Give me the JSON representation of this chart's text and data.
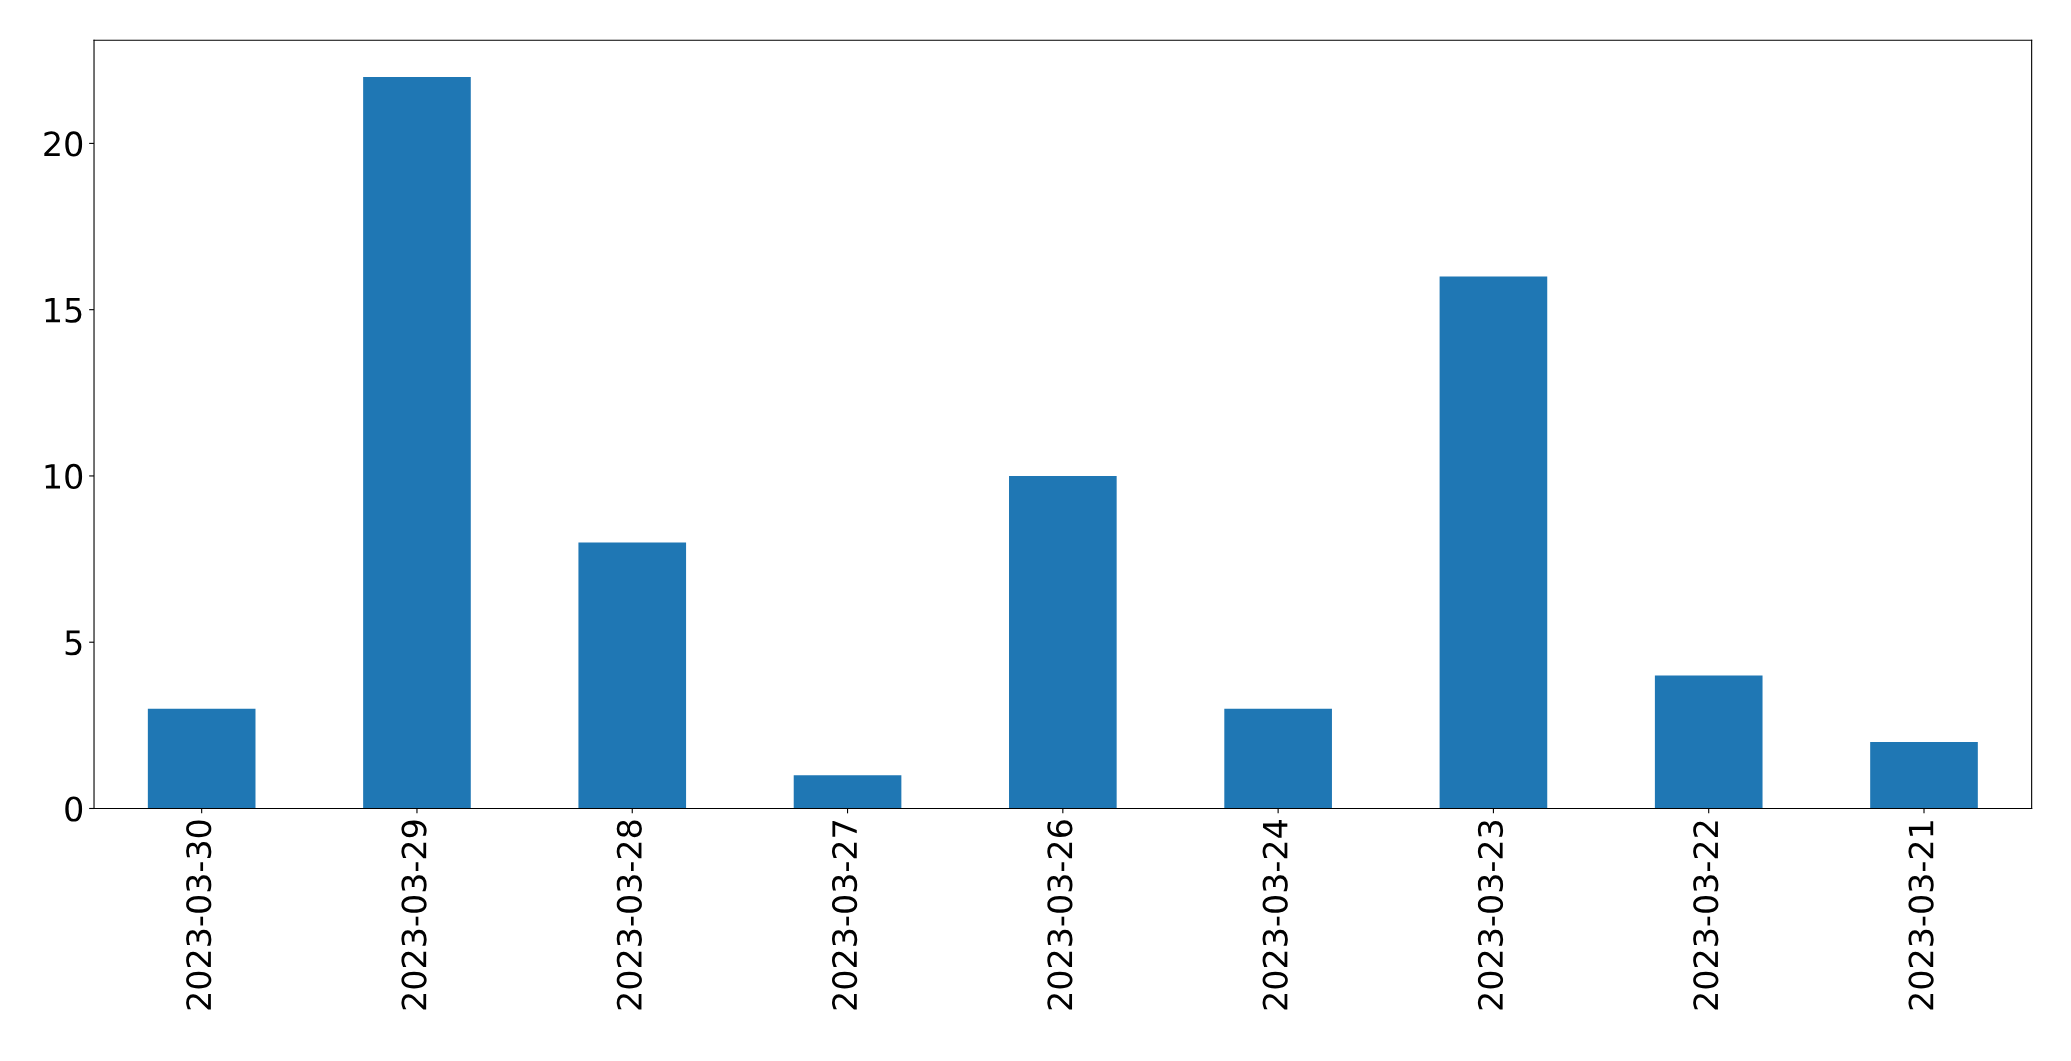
{
  "chart_data": {
    "type": "bar",
    "categories": [
      "2023-03-30",
      "2023-03-29",
      "2023-03-28",
      "2023-03-27",
      "2023-03-26",
      "2023-03-24",
      "2023-03-23",
      "2023-03-22",
      "2023-03-21"
    ],
    "values": [
      3,
      22,
      8,
      1,
      10,
      3,
      16,
      4,
      2
    ],
    "color": "#1f77b4",
    "ylim": [
      0,
      23.1
    ],
    "yticks": [
      0,
      5,
      10,
      15,
      20
    ],
    "grid": false
  }
}
